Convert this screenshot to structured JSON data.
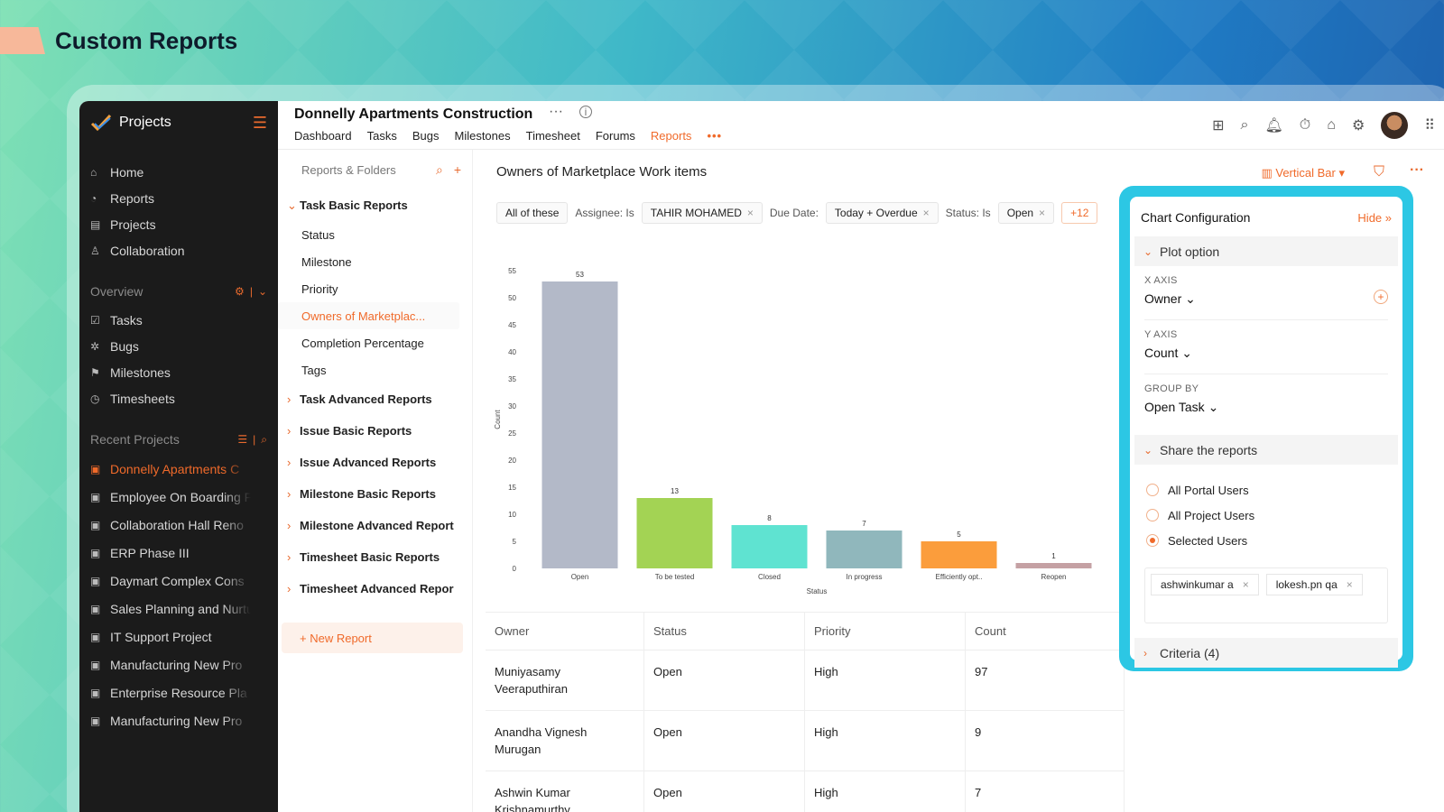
{
  "hero": {
    "title": "Custom Reports"
  },
  "sidebar": {
    "app_name": "Projects",
    "nav": [
      {
        "label": "Home",
        "icon": "home-icon"
      },
      {
        "label": "Reports",
        "icon": "reports-icon"
      },
      {
        "label": "Projects",
        "icon": "projects-icon"
      },
      {
        "label": "Collaboration",
        "icon": "collaboration-icon"
      }
    ],
    "overview_label": "Overview",
    "overview_items": [
      {
        "label": "Tasks"
      },
      {
        "label": "Bugs"
      },
      {
        "label": "Milestones"
      },
      {
        "label": "Timesheets"
      }
    ],
    "recent_label": "Recent Projects",
    "recent": [
      "Donnelly Apartments C",
      "Employee On Boarding F",
      "Collaboration Hall Reno",
      "ERP Phase III",
      "Daymart Complex Cons",
      "Sales Planning and Nurtu",
      "IT Support Project",
      "Manufacturing New Pro",
      "Enterprise Resource Pla",
      "Manufacturing New Pro"
    ]
  },
  "topbar": {
    "project_title": "Donnelly Apartments Construction",
    "more": "···",
    "info": "i",
    "tabs": [
      "Dashboard",
      "Tasks",
      "Bugs",
      "Milestones",
      "Timesheet",
      "Forums",
      "Reports"
    ],
    "active_tab": "Reports",
    "tabs_more": "•••"
  },
  "folders": {
    "header": "Reports & Folders",
    "group_open": "Task Basic Reports",
    "open_items": [
      "Status",
      "Milestone",
      "Priority",
      "Owners of Marketplac...",
      "Completion Percentage",
      "Tags"
    ],
    "active_item": "Owners of Marketplac...",
    "groups": [
      "Task Advanced Reports",
      "Issue Basic Reports",
      "Issue Advanced Reports",
      "Milestone Basic Reports",
      "Milestone Advanced Report",
      "Timesheet Basic Reports",
      "Timesheet Advanced Repor"
    ],
    "new_report": "+ New Report"
  },
  "report": {
    "title": "Owners of Marketplace Work items",
    "chart_type": "Vertical Bar",
    "filters": {
      "match": "All of these",
      "assignee_label": "Assignee: Is",
      "assignee_value": "TAHIR MOHAMED",
      "due_label": "Due Date:",
      "due_value": "Today + Overdue",
      "status_label": "Status: Is",
      "status_value": "Open",
      "more": "+12"
    }
  },
  "chart_data": {
    "type": "bar",
    "categories": [
      "Open",
      "To be tested",
      "Closed",
      "In progress",
      "Efficiently opt..",
      "Reopen"
    ],
    "values": [
      53,
      13,
      8,
      7,
      5,
      1
    ],
    "colors": [
      "#b3b9c8",
      "#a3d354",
      "#5fe3d1",
      "#90b7bc",
      "#fb9d3c",
      "#c5a1a4"
    ],
    "xlabel": "Status",
    "ylabel": "Count",
    "ylim": [
      0,
      55
    ],
    "yticks": [
      0,
      5,
      10,
      15,
      20,
      25,
      30,
      35,
      40,
      45,
      50,
      55
    ]
  },
  "table": {
    "headers": [
      "Owner",
      "Status",
      "Priority",
      "Count"
    ],
    "rows": [
      [
        "Muniyasamy Veeraputhiran",
        "Open",
        "High",
        "97"
      ],
      [
        "Anandha Vignesh Murugan",
        "Open",
        "High",
        "9"
      ],
      [
        "Ashwin Kumar Krishnamurthy",
        "Open",
        "High",
        "7"
      ]
    ]
  },
  "config": {
    "title": "Chart Configuration",
    "hide": "Hide »",
    "plot_option": "Plot option",
    "x_axis_label": "X AXIS",
    "x_axis_value": "Owner",
    "y_axis_label": "Y AXIS",
    "y_axis_value": "Count",
    "group_by_label": "GROUP BY",
    "group_by_value": "Open Task",
    "share_label": "Share the reports",
    "share_options": [
      "All Portal Users",
      "All Project Users",
      "Selected Users"
    ],
    "share_selected": "Selected Users",
    "users": [
      "ashwinkumar a",
      "lokesh.pn qa"
    ],
    "criteria": "Criteria (4)"
  }
}
